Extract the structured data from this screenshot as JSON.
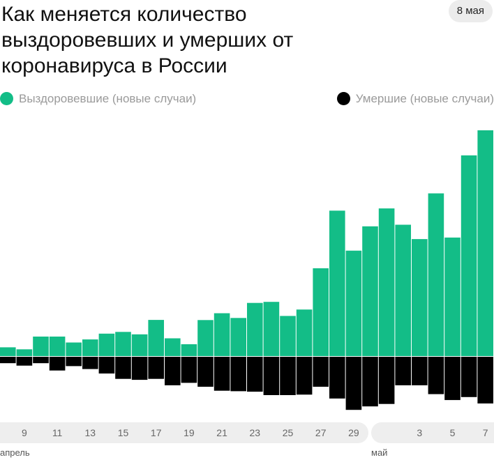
{
  "header": {
    "title": "Как меняется количество выздоровевших и умерших от коронавируса в России",
    "date": "8 мая"
  },
  "legend": {
    "recovered": "Выздоровевшие (новые случаи)",
    "deceased": "Умершие (новые случаи)"
  },
  "colors": {
    "recovered": "#13bd87",
    "deceased": "#000000",
    "axis_pill": "#eeeeee",
    "tick_text": "#666666"
  },
  "months": {
    "april": "апрель",
    "may": "май"
  },
  "chart_data": {
    "type": "bar",
    "categories": [
      "8 апр",
      "9 апр",
      "10 апр",
      "11 апр",
      "12 апр",
      "13 апр",
      "14 апр",
      "15 апр",
      "16 апр",
      "17 апр",
      "18 апр",
      "19 апр",
      "20 апр",
      "21 апр",
      "22 апр",
      "23 апр",
      "24 апр",
      "25 апр",
      "26 апр",
      "27 апр",
      "28 апр",
      "29 апр",
      "30 апр",
      "1 мая",
      "2 мая",
      "3 мая",
      "4 мая",
      "5 мая",
      "6 мая",
      "7 мая"
    ],
    "tick_labels": [
      "9",
      "11",
      "13",
      "15",
      "17",
      "19",
      "21",
      "23",
      "25",
      "27",
      "29",
      "3",
      "5",
      "7"
    ],
    "series": [
      {
        "name": "Выздоровевшие (новые случаи)",
        "values": [
          71,
          55,
          158,
          158,
          110,
          135,
          182,
          196,
          176,
          293,
          144,
          96,
          292,
          347,
          309,
          431,
          439,
          325,
          377,
          711,
          1178,
          854,
          1051,
          1196,
          1064,
          948,
          1318,
          960,
          1626,
          1829
        ]
      },
      {
        "name": "Умершие (новые случаи)",
        "values": [
          13,
          18,
          13,
          28,
          19,
          25,
          34,
          45,
          47,
          45,
          58,
          53,
          61,
          69,
          70,
          71,
          78,
          78,
          77,
          61,
          85,
          108,
          101,
          96,
          58,
          58,
          76,
          88,
          82,
          95
        ]
      }
    ]
  }
}
